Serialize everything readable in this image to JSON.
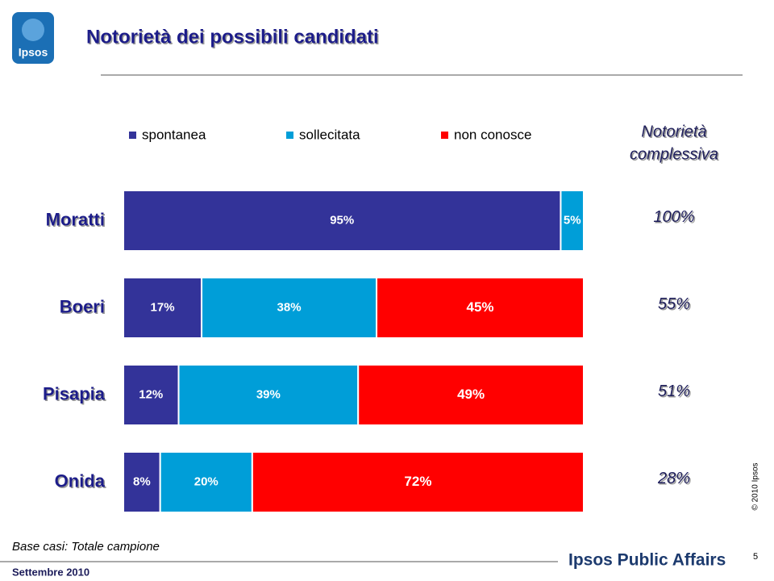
{
  "logo": "Ipsos",
  "header": {
    "title": "Notorietà dei possibili candidati"
  },
  "chart_data": {
    "type": "stacked-bar-horizontal",
    "categories": [
      "Moratti",
      "Boeri",
      "Pisapia",
      "Onida"
    ],
    "xlim": [
      0,
      100
    ],
    "legend": "top",
    "series": [
      {
        "name": "spontanea",
        "color": "#333399",
        "values": [
          95,
          17,
          12,
          8
        ],
        "value_labels": [
          "95%",
          "17%",
          "12%",
          "8%"
        ]
      },
      {
        "name": "sollecitata",
        "color": "#009ed8",
        "values": [
          5,
          38,
          39,
          20
        ],
        "value_labels": [
          "5%",
          "38%",
          "39%",
          "20%"
        ]
      },
      {
        "name": "non conosce",
        "color": "#ff0000",
        "values": [
          null,
          45,
          49,
          72
        ],
        "value_labels": [
          null,
          "45%",
          "49%",
          "72%"
        ]
      }
    ],
    "total": {
      "title_lines": [
        "Notorietà",
        "complessiva"
      ],
      "values": [
        100,
        55,
        51,
        28
      ],
      "value_labels": [
        "100%",
        "55%",
        "51%",
        "28%"
      ]
    }
  },
  "footer": {
    "base": "Base casi: Totale campione",
    "date": "Settembre 2010",
    "brand": "Ipsos Public Affairs",
    "page": "5",
    "copyright": "© 2010 Ipsos"
  }
}
